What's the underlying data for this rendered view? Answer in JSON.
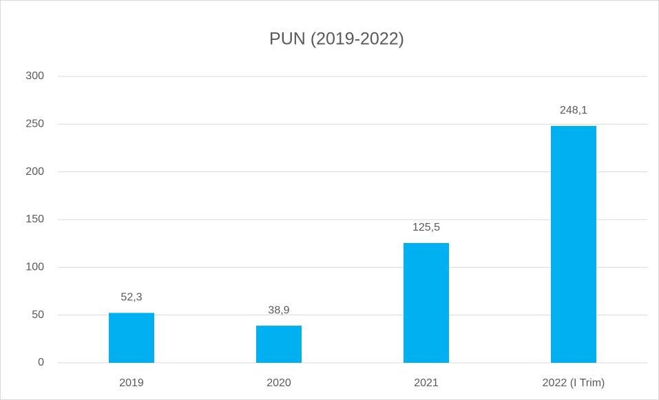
{
  "chart_data": {
    "type": "bar",
    "title": "PUN (2019-2022)",
    "categories": [
      "2019",
      "2020",
      "2021",
      "2022 (I Trim)"
    ],
    "values": [
      52.3,
      38.9,
      125.5,
      248.1
    ],
    "value_labels": [
      "52,3",
      "38,9",
      "125,5",
      "248,1"
    ],
    "color": "#00b0f0",
    "ylim": [
      0,
      300
    ],
    "yticks": [
      0,
      50,
      100,
      150,
      200,
      250,
      300
    ],
    "grid": true
  }
}
